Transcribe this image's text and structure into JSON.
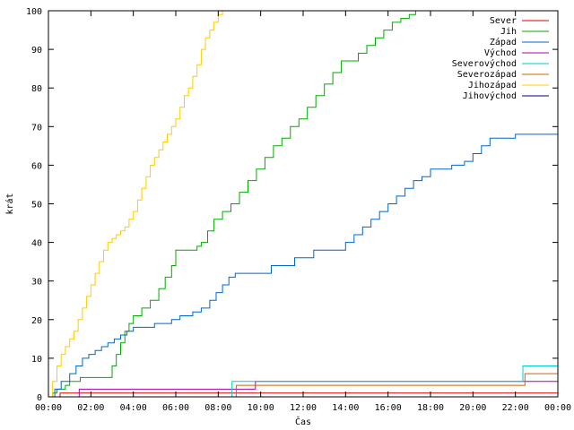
{
  "chart_data": {
    "type": "line",
    "title": "",
    "xlabel": "Čas",
    "ylabel": "krát",
    "xlim": [
      0,
      24
    ],
    "ylim": [
      0,
      100
    ],
    "x_tick_labels": [
      "00:00",
      "02:00",
      "04:00",
      "06:00",
      "08:00",
      "10:00",
      "12:00",
      "14:00",
      "16:00",
      "18:00",
      "20:00",
      "22:00",
      "00:00"
    ],
    "y_tick_labels": [
      "0",
      "10",
      "20",
      "30",
      "40",
      "50",
      "60",
      "70",
      "80",
      "90",
      "100"
    ],
    "x_unit": "hours",
    "grid": false,
    "legend_position": "top-right",
    "series": [
      {
        "name": "Sever",
        "color": "#d40000",
        "x": [
          0.5,
          0.55,
          24
        ],
        "y": [
          0,
          1,
          1
        ]
      },
      {
        "name": "Jih",
        "color": "#00aa00",
        "x": [
          0,
          0.2,
          0.4,
          0.8,
          1.0,
          1.5,
          2.8,
          3.0,
          3.2,
          3.4,
          3.6,
          3.8,
          4.0,
          4.4,
          4.8,
          5.2,
          5.5,
          5.8,
          6.0,
          6.5,
          7.0,
          7.2,
          7.5,
          7.8,
          8.2,
          8.6,
          9.0,
          9.4,
          9.8,
          10.2,
          10.6,
          11.0,
          11.4,
          11.8,
          12.2,
          12.6,
          13.0,
          13.4,
          13.8,
          14.2,
          14.6,
          15.0,
          15.4,
          15.8,
          16.2,
          16.6,
          17.0,
          17.3,
          24
        ],
        "y": [
          0,
          1,
          2,
          3,
          4,
          5,
          5,
          8,
          11,
          14,
          17,
          19,
          21,
          23,
          25,
          28,
          31,
          34,
          38,
          38,
          39,
          40,
          43,
          46,
          48,
          50,
          53,
          56,
          59,
          62,
          65,
          67,
          70,
          72,
          75,
          78,
          81,
          84,
          87,
          87,
          89,
          91,
          93,
          95,
          97,
          98,
          99,
          100,
          100
        ]
      },
      {
        "name": "Západ",
        "color": "#0066cc",
        "x": [
          0,
          0.3,
          0.6,
          1.0,
          1.3,
          1.6,
          1.9,
          2.2,
          2.5,
          2.8,
          3.1,
          3.4,
          3.7,
          4.0,
          5.0,
          5.8,
          6.2,
          6.8,
          7.2,
          7.6,
          7.9,
          8.2,
          8.5,
          8.8,
          9.2,
          10.5,
          11.6,
          12.5,
          13.5,
          14.0,
          14.4,
          14.8,
          15.2,
          15.6,
          16.0,
          16.4,
          16.8,
          17.2,
          17.6,
          18.0,
          19.0,
          19.6,
          20.0,
          20.4,
          20.8,
          22.0,
          24
        ],
        "y": [
          0,
          2,
          4,
          6,
          8,
          10,
          11,
          12,
          13,
          14,
          15,
          16,
          17,
          18,
          19,
          20,
          21,
          22,
          23,
          25,
          27,
          29,
          31,
          32,
          32,
          34,
          36,
          38,
          38,
          40,
          42,
          44,
          46,
          48,
          50,
          52,
          54,
          56,
          57,
          59,
          60,
          61,
          63,
          65,
          67,
          68,
          69
        ]
      },
      {
        "name": "Východ",
        "color": "#aa00aa",
        "x": [
          0,
          1.4,
          1.45,
          9.7,
          9.75,
          24
        ],
        "y": [
          0,
          0,
          2,
          2,
          4,
          4
        ]
      },
      {
        "name": "Severovýchod",
        "color": "#00cccc",
        "x": [
          0,
          8.6,
          8.65,
          22.3,
          22.35,
          24
        ],
        "y": [
          0,
          0,
          4,
          4,
          8,
          8
        ]
      },
      {
        "name": "Severozápad",
        "color": "#cc6600",
        "x": [
          0,
          8.8,
          8.85,
          22.4,
          22.45,
          24
        ],
        "y": [
          0,
          0,
          3,
          3,
          6,
          6
        ]
      },
      {
        "name": "Jihozápad",
        "color": "#ffcc00",
        "x": [
          0,
          0.2,
          0.4,
          0.6,
          0.8,
          1.0,
          1.2,
          1.4,
          1.6,
          1.8,
          2.0,
          2.2,
          2.4,
          2.6,
          2.8,
          3.0,
          3.2,
          3.4,
          3.6,
          3.8,
          4.0,
          4.2,
          4.4,
          4.6,
          4.8,
          5.0,
          5.2,
          5.4,
          5.6,
          5.8,
          6.0,
          6.2,
          6.4,
          6.6,
          6.8,
          7.0,
          7.2,
          7.4,
          7.6,
          7.8,
          8.0,
          8.2,
          24
        ],
        "y": [
          0,
          4,
          8,
          11,
          13,
          15,
          17,
          20,
          23,
          26,
          29,
          32,
          35,
          38,
          40,
          41,
          42,
          43,
          44,
          46,
          48,
          51,
          54,
          57,
          60,
          62,
          64,
          66,
          68,
          70,
          72,
          75,
          78,
          80,
          83,
          86,
          90,
          93,
          95,
          97,
          99,
          100,
          100
        ]
      },
      {
        "name": "Jihovýchod",
        "color": "#000080",
        "x": [
          0,
          24
        ],
        "y": [
          0,
          0
        ]
      }
    ]
  }
}
